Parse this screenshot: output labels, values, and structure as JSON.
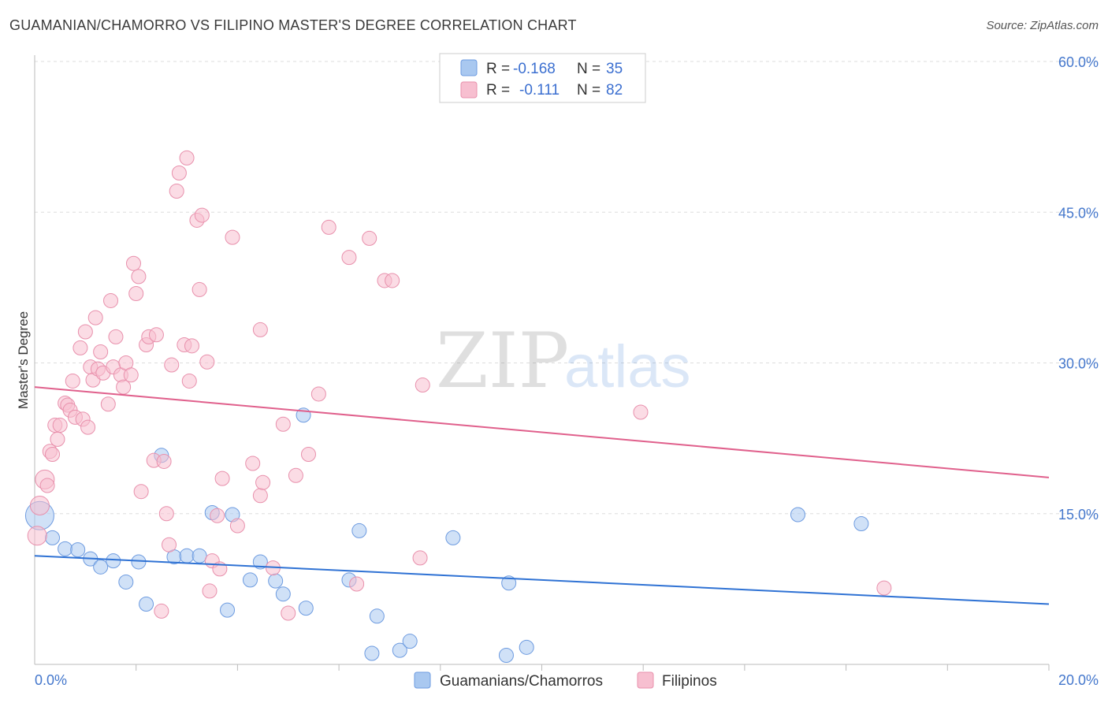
{
  "chart_data": {
    "type": "scatter",
    "title": "GUAMANIAN/CHAMORRO VS FILIPINO MASTER'S DEGREE CORRELATION CHART",
    "source": "Source: ZipAtlas.com",
    "xlabel": "",
    "ylabel": "Master's Degree",
    "xlim": [
      0,
      20
    ],
    "ylim": [
      0,
      60
    ],
    "x_tick_labels": {
      "min": "0.0%",
      "max": "20.0%"
    },
    "y_ticks": [
      {
        "value": 15,
        "label": "15.0%"
      },
      {
        "value": 30,
        "label": "30.0%"
      },
      {
        "value": 45,
        "label": "45.0%"
      },
      {
        "value": 60,
        "label": "60.0%"
      }
    ],
    "watermark": {
      "part1": "ZIP",
      "part2": "atlas"
    },
    "legend": {
      "rows": [
        {
          "r_label": "R =",
          "r_value": "-0.168",
          "n_label": "N =",
          "n_value": "35"
        },
        {
          "r_label": "R =",
          "r_value": "-0.111",
          "n_label": "N =",
          "n_value": "82"
        }
      ]
    },
    "series": [
      {
        "name": "Guamanians/Chamorros",
        "color": "#a9c8f0",
        "stroke": "#6d9be0",
        "line_color": "#2f72d4",
        "trend": {
          "x0": 0,
          "y0": 10.8,
          "x1": 20,
          "y1": 6.0
        },
        "points": [
          [
            0.1,
            14.8,
            18
          ],
          [
            0.35,
            12.6,
            9
          ],
          [
            0.6,
            11.5,
            9
          ],
          [
            0.85,
            11.4,
            9
          ],
          [
            1.1,
            10.5,
            9
          ],
          [
            1.3,
            9.7,
            9
          ],
          [
            1.55,
            10.3,
            9
          ],
          [
            1.8,
            8.2,
            9
          ],
          [
            2.05,
            10.2,
            9
          ],
          [
            2.2,
            6.0,
            9
          ],
          [
            2.5,
            20.8,
            9
          ],
          [
            2.75,
            10.7,
            9
          ],
          [
            3.0,
            10.8,
            9
          ],
          [
            3.25,
            10.8,
            9
          ],
          [
            3.5,
            15.1,
            9
          ],
          [
            3.8,
            5.4,
            9
          ],
          [
            3.9,
            14.9,
            9
          ],
          [
            4.25,
            8.4,
            9
          ],
          [
            4.45,
            10.2,
            9
          ],
          [
            4.75,
            8.3,
            9
          ],
          [
            4.9,
            7.0,
            9
          ],
          [
            5.35,
            5.6,
            9
          ],
          [
            5.3,
            24.8,
            9
          ],
          [
            6.2,
            8.4,
            9
          ],
          [
            6.4,
            13.3,
            9
          ],
          [
            6.65,
            1.1,
            9
          ],
          [
            6.75,
            4.8,
            9
          ],
          [
            7.2,
            1.4,
            9
          ],
          [
            7.4,
            2.3,
            9
          ],
          [
            8.25,
            12.6,
            9
          ],
          [
            9.3,
            0.9,
            9
          ],
          [
            9.35,
            8.1,
            9
          ],
          [
            9.7,
            1.7,
            9
          ],
          [
            15.05,
            14.9,
            9
          ],
          [
            16.3,
            14.0,
            9
          ]
        ]
      },
      {
        "name": "Filipinos",
        "color": "#f7bfd0",
        "stroke": "#e890ac",
        "line_color": "#e0608c",
        "trend": {
          "x0": 0,
          "y0": 27.6,
          "x1": 20,
          "y1": 18.6
        },
        "points": [
          [
            0.05,
            12.8,
            12
          ],
          [
            0.1,
            15.8,
            12
          ],
          [
            0.2,
            18.4,
            12
          ],
          [
            0.25,
            17.8,
            9
          ],
          [
            0.3,
            21.2,
            9
          ],
          [
            0.35,
            20.9,
            9
          ],
          [
            0.4,
            23.8,
            9
          ],
          [
            0.45,
            22.4,
            9
          ],
          [
            0.5,
            23.8,
            9
          ],
          [
            0.6,
            26.0,
            9
          ],
          [
            0.65,
            25.8,
            9
          ],
          [
            0.7,
            25.3,
            9
          ],
          [
            0.75,
            28.2,
            9
          ],
          [
            0.8,
            24.6,
            9
          ],
          [
            0.9,
            31.5,
            9
          ],
          [
            0.95,
            24.4,
            9
          ],
          [
            1.0,
            33.1,
            9
          ],
          [
            1.05,
            23.6,
            9
          ],
          [
            1.1,
            29.6,
            9
          ],
          [
            1.15,
            28.3,
            9
          ],
          [
            1.2,
            34.5,
            9
          ],
          [
            1.25,
            29.4,
            9
          ],
          [
            1.3,
            31.1,
            9
          ],
          [
            1.35,
            29.0,
            9
          ],
          [
            1.45,
            25.9,
            9
          ],
          [
            1.5,
            36.2,
            9
          ],
          [
            1.55,
            29.6,
            9
          ],
          [
            1.6,
            32.6,
            9
          ],
          [
            1.7,
            28.8,
            9
          ],
          [
            1.75,
            27.6,
            9
          ],
          [
            1.8,
            30.0,
            9
          ],
          [
            1.9,
            28.8,
            9
          ],
          [
            1.95,
            39.9,
            9
          ],
          [
            2.0,
            36.9,
            9
          ],
          [
            2.05,
            38.6,
            9
          ],
          [
            2.1,
            17.2,
            9
          ],
          [
            2.2,
            31.8,
            9
          ],
          [
            2.25,
            32.6,
            9
          ],
          [
            2.35,
            20.3,
            9
          ],
          [
            2.4,
            32.8,
            9
          ],
          [
            2.5,
            5.3,
            9
          ],
          [
            2.55,
            20.2,
            9
          ],
          [
            2.6,
            15.0,
            9
          ],
          [
            2.65,
            11.9,
            9
          ],
          [
            2.7,
            29.8,
            9
          ],
          [
            2.8,
            47.1,
            9
          ],
          [
            2.85,
            48.9,
            9
          ],
          [
            2.95,
            31.8,
            9
          ],
          [
            3.0,
            50.4,
            9
          ],
          [
            3.05,
            28.2,
            9
          ],
          [
            3.1,
            31.7,
            9
          ],
          [
            3.2,
            44.2,
            9
          ],
          [
            3.25,
            37.3,
            9
          ],
          [
            3.3,
            44.7,
            9
          ],
          [
            3.4,
            30.1,
            9
          ],
          [
            3.45,
            7.3,
            9
          ],
          [
            3.5,
            10.3,
            9
          ],
          [
            3.6,
            14.8,
            9
          ],
          [
            3.65,
            9.5,
            9
          ],
          [
            3.7,
            18.5,
            9
          ],
          [
            3.9,
            42.5,
            9
          ],
          [
            4.0,
            13.8,
            9
          ],
          [
            4.3,
            20.0,
            9
          ],
          [
            4.45,
            16.8,
            9
          ],
          [
            4.5,
            18.1,
            9
          ],
          [
            4.45,
            33.3,
            9
          ],
          [
            4.7,
            9.6,
            9
          ],
          [
            4.9,
            23.9,
            9
          ],
          [
            5.0,
            5.1,
            9
          ],
          [
            5.15,
            18.8,
            9
          ],
          [
            5.4,
            20.9,
            9
          ],
          [
            5.6,
            26.9,
            9
          ],
          [
            5.8,
            43.5,
            9
          ],
          [
            6.2,
            40.5,
            9
          ],
          [
            6.35,
            8.0,
            9
          ],
          [
            6.6,
            42.4,
            9
          ],
          [
            6.9,
            38.2,
            9
          ],
          [
            7.05,
            38.2,
            9
          ],
          [
            7.6,
            10.6,
            9
          ],
          [
            7.65,
            27.8,
            9
          ],
          [
            11.95,
            25.1,
            9
          ],
          [
            16.75,
            7.6,
            9
          ]
        ]
      }
    ]
  }
}
